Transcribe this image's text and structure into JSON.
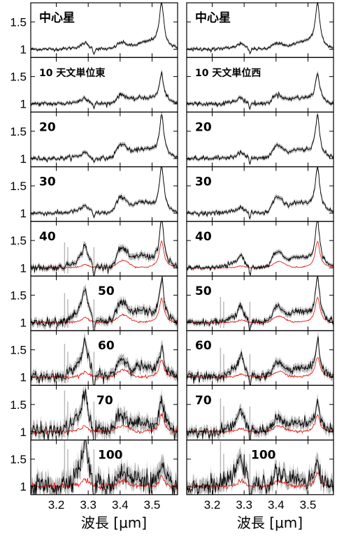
{
  "chart_data": {
    "type": "line",
    "xlabel": "波長 [μm]",
    "xlim": [
      3.12,
      3.58
    ],
    "ylim": [
      0.85,
      1.85
    ],
    "x_ticks": [
      3.2,
      3.3,
      3.4,
      3.5
    ],
    "x_tick_labels": [
      "3.2",
      "3.3",
      "3.4",
      "3.5"
    ],
    "y_ticks": [
      1,
      1.5
    ],
    "y_tick_labels": [
      "1",
      "1.5"
    ],
    "grid": false,
    "columns": [
      {
        "panels": [
          {
            "label": "中心星",
            "features": {
              "p33": 0.1,
              "p34": 0.1,
              "p353": 0.75,
              "noise": 0.015,
              "red": false
            }
          },
          {
            "label": "10 天文単位東",
            "features": {
              "p33": 0.1,
              "p34": 0.14,
              "p353": 0.48,
              "noise": 0.02,
              "red": false
            }
          },
          {
            "label": "20",
            "features": {
              "p33": 0.1,
              "p34": 0.22,
              "p353": 0.7,
              "noise": 0.02,
              "red": false
            }
          },
          {
            "label": "30",
            "features": {
              "p33": 0.12,
              "p34": 0.25,
              "p353": 0.75,
              "noise": 0.02,
              "red": false
            }
          },
          {
            "label": "40",
            "features": {
              "p33": 0.35,
              "p34": 0.3,
              "p353": 0.78,
              "noise": 0.03,
              "red": true
            }
          },
          {
            "label": "50",
            "features": {
              "p33": 0.5,
              "p34": 0.3,
              "p353": 0.7,
              "noise": 0.04,
              "red": true
            }
          },
          {
            "label": "60",
            "features": {
              "p33": 0.55,
              "p34": 0.28,
              "p353": 0.5,
              "noise": 0.05,
              "red": true
            }
          },
          {
            "label": "70",
            "features": {
              "p33": 0.6,
              "p34": 0.25,
              "p353": 0.5,
              "noise": 0.07,
              "red": true
            }
          },
          {
            "label": "100",
            "features": {
              "p33": 0.7,
              "p34": 0.22,
              "p353": 0.3,
              "noise": 0.1,
              "red": true
            }
          }
        ]
      },
      {
        "panels": [
          {
            "label": "中心星",
            "features": {
              "p33": 0.1,
              "p34": 0.1,
              "p353": 0.75,
              "noise": 0.015,
              "red": false
            }
          },
          {
            "label": "10 天文単位西",
            "features": {
              "p33": 0.1,
              "p34": 0.14,
              "p353": 0.48,
              "noise": 0.02,
              "red": false
            }
          },
          {
            "label": "20",
            "features": {
              "p33": 0.1,
              "p34": 0.2,
              "p353": 0.68,
              "noise": 0.02,
              "red": false
            }
          },
          {
            "label": "30",
            "features": {
              "p33": 0.1,
              "p34": 0.25,
              "p353": 0.75,
              "noise": 0.02,
              "red": false
            }
          },
          {
            "label": "40",
            "features": {
              "p33": 0.2,
              "p34": 0.25,
              "p353": 0.78,
              "noise": 0.02,
              "red": true
            }
          },
          {
            "label": "50",
            "features": {
              "p33": 0.25,
              "p34": 0.25,
              "p353": 0.75,
              "noise": 0.03,
              "red": true
            }
          },
          {
            "label": "60",
            "features": {
              "p33": 0.32,
              "p34": 0.22,
              "p353": 0.6,
              "noise": 0.04,
              "red": true
            }
          },
          {
            "label": "70",
            "features": {
              "p33": 0.35,
              "p34": 0.22,
              "p353": 0.5,
              "noise": 0.05,
              "red": true
            }
          },
          {
            "label": "100",
            "features": {
              "p33": 0.5,
              "p34": 0.2,
              "p353": 0.4,
              "noise": 0.08,
              "red": true
            }
          }
        ]
      }
    ],
    "colors": {
      "data": "#000000",
      "error": "#b5b5b5",
      "model": "#e0201a"
    }
  }
}
